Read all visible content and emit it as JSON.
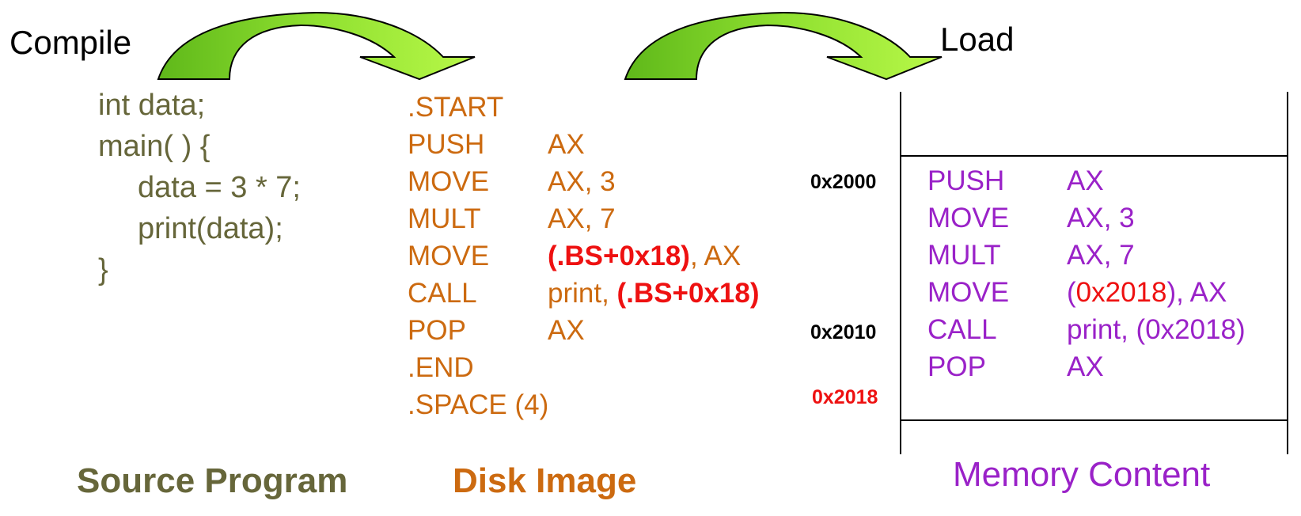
{
  "labels": {
    "compile": "Compile",
    "load": "Load"
  },
  "source": {
    "title": "Source Program",
    "lines": [
      "int data;",
      "main( ) {",
      "data = 3 * 7;",
      "print(data);",
      "}"
    ]
  },
  "disk": {
    "title": "Disk Image",
    "start": ".START",
    "rows": [
      {
        "op": "PUSH",
        "arg": "AX"
      },
      {
        "op": "MOVE",
        "arg": "AX, 3"
      },
      {
        "op": "MULT",
        "arg": "AX, 7"
      },
      {
        "op": "MOVE",
        "arg_hl": "(.BS+0x18)",
        "arg_rest": ", AX"
      },
      {
        "op": "CALL",
        "arg_pre": "print, ",
        "arg_hl": "(.BS+0x18)"
      },
      {
        "op": "POP",
        "arg": "AX"
      }
    ],
    "end": ".END",
    "space": ".SPACE (4)"
  },
  "memory": {
    "title": "Memory Content",
    "addresses": [
      "0x2000",
      "0x2010",
      "0x2018"
    ],
    "rows": [
      {
        "op": "PUSH",
        "arg": "AX"
      },
      {
        "op": "MOVE",
        "arg": "AX, 3"
      },
      {
        "op": "MULT",
        "arg": "AX, 7"
      },
      {
        "op": "MOVE",
        "arg_pre": "(",
        "arg_red": "0x2018",
        "arg_rest": "), AX"
      },
      {
        "op": "CALL",
        "arg": "print, (0x2018)"
      },
      {
        "op": "POP",
        "arg": "AX"
      }
    ]
  },
  "colors": {
    "source": "#66663a",
    "disk": "#cc6a10",
    "memory": "#9a22c8",
    "highlight": "#ee1111",
    "arrow_dark": "#5fb81a",
    "arrow_light": "#a8f040"
  }
}
